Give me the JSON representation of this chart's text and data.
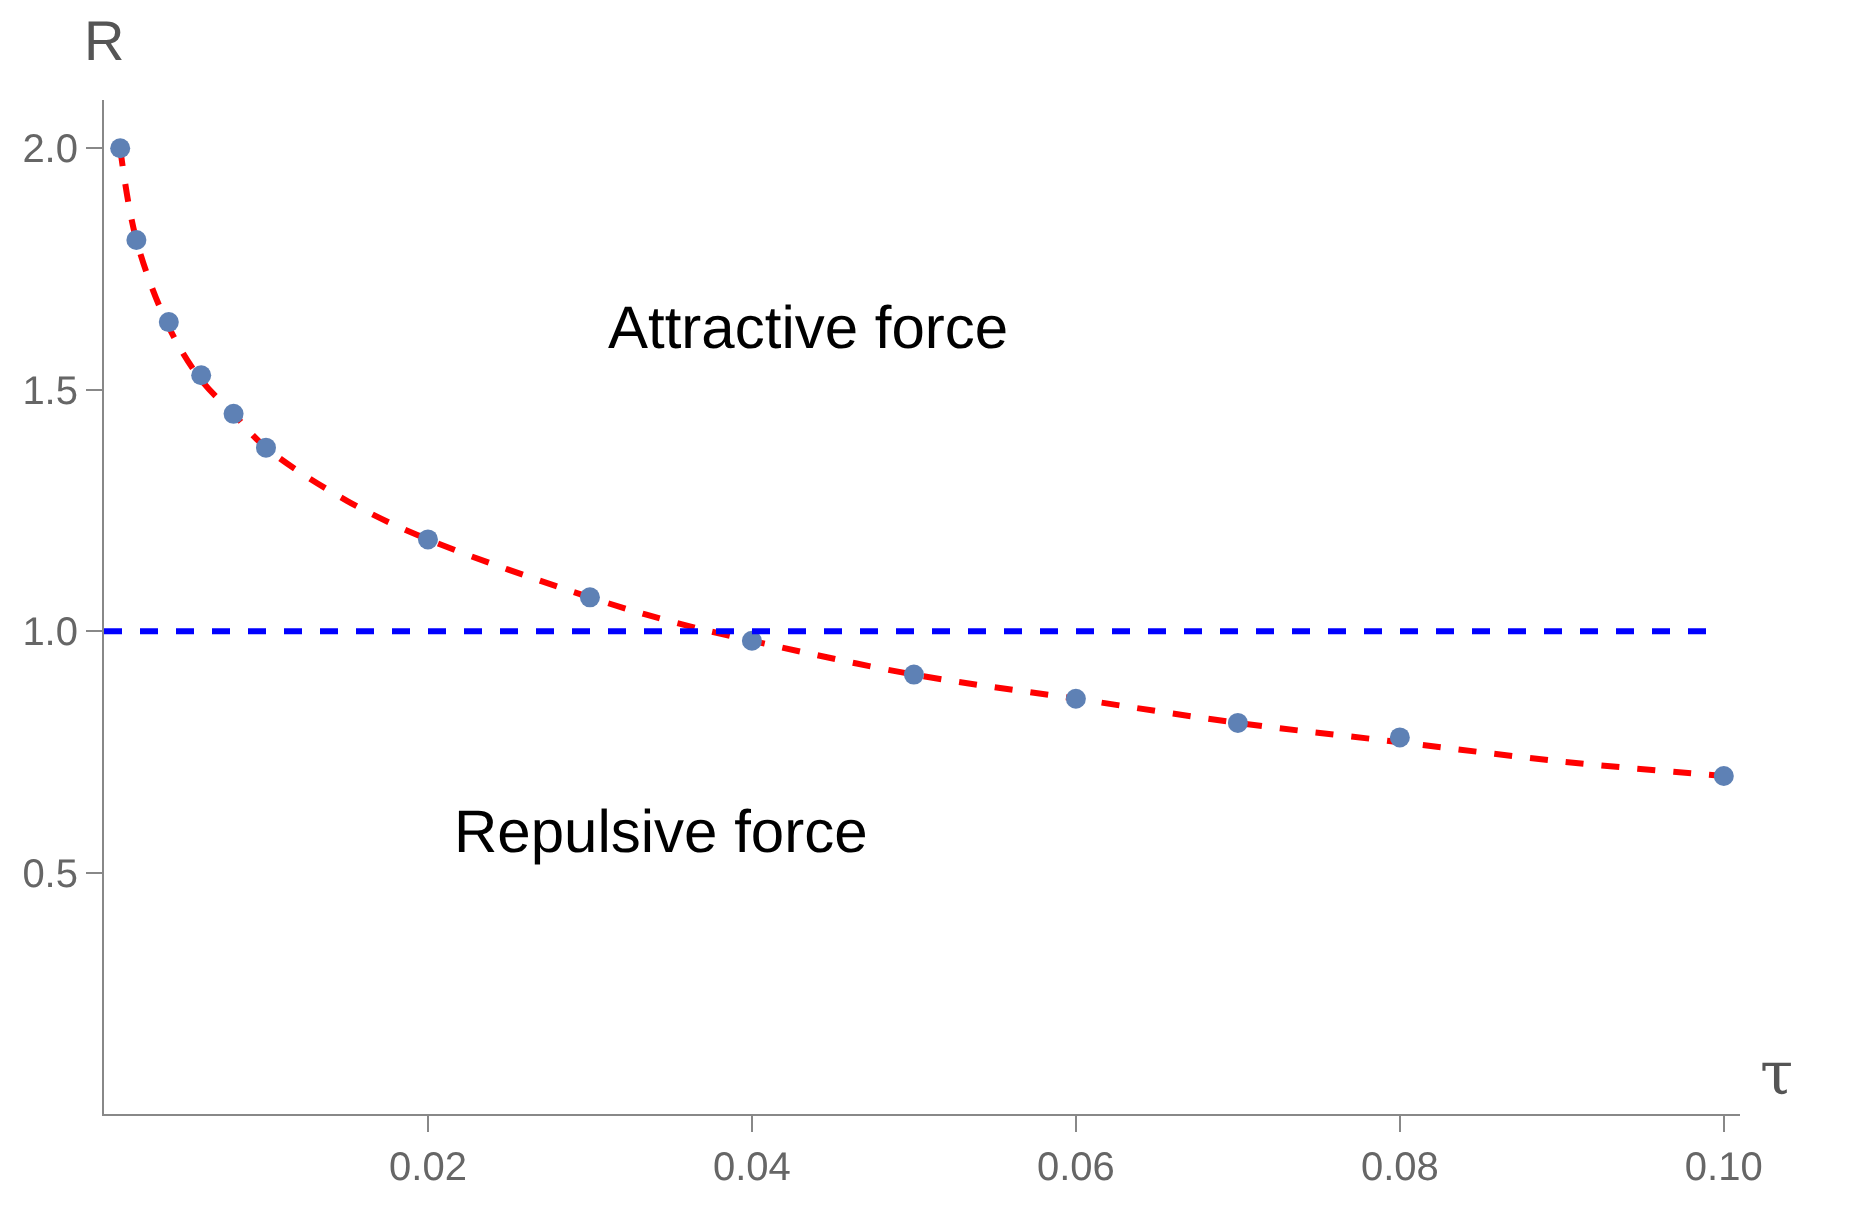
{
  "chart_data": {
    "type": "scatter",
    "xlabel": "τ",
    "ylabel": "R",
    "xlim": [
      0,
      0.101
    ],
    "ylim": [
      0,
      2.1
    ],
    "xticks": [
      0.02,
      0.04,
      0.06,
      0.08,
      {
        "value": 0.1,
        "label": "0.10"
      }
    ],
    "yticks": [
      {
        "value": 0.5,
        "label": "0.5"
      },
      {
        "value": 1,
        "label": "1.0"
      },
      {
        "value": 1.5,
        "label": "1.5"
      },
      {
        "value": 2,
        "label": "2.0"
      }
    ],
    "grid": false,
    "legend": false,
    "series": [
      {
        "type": "line",
        "color": "#ff0000",
        "line_style": "dashed",
        "marker": "none",
        "x": [
          0.001,
          0.002,
          0.004,
          0.006,
          0.008,
          0.01,
          0.015,
          0.02,
          0.03,
          0.035,
          0.04,
          0.05,
          0.06,
          0.07,
          0.08,
          0.09,
          0.1
        ],
        "values": [
          2.0,
          1.81,
          1.63,
          1.52,
          1.45,
          1.38,
          1.27,
          1.19,
          1.07,
          1.02,
          0.98,
          0.91,
          0.86,
          0.81,
          0.77,
          0.73,
          0.7
        ]
      },
      {
        "color": "#5e81b5",
        "marker": "circle",
        "x": [
          0.001,
          0.002,
          0.004,
          0.006,
          0.008,
          0.01,
          0.02,
          0.03,
          0.04,
          0.05,
          0.06,
          0.07,
          0.08,
          0.1
        ],
        "values": [
          2.0,
          1.81,
          1.64,
          1.53,
          1.45,
          1.38,
          1.19,
          1.07,
          0.98,
          0.91,
          0.86,
          0.81,
          0.78,
          0.7
        ]
      }
    ],
    "ref_lines": [
      {
        "axis": "y",
        "value": 1,
        "color": "#0000ff",
        "line_style": "dashed"
      }
    ],
    "annotations": [
      "Attractive force",
      "Repulsive force"
    ]
  }
}
